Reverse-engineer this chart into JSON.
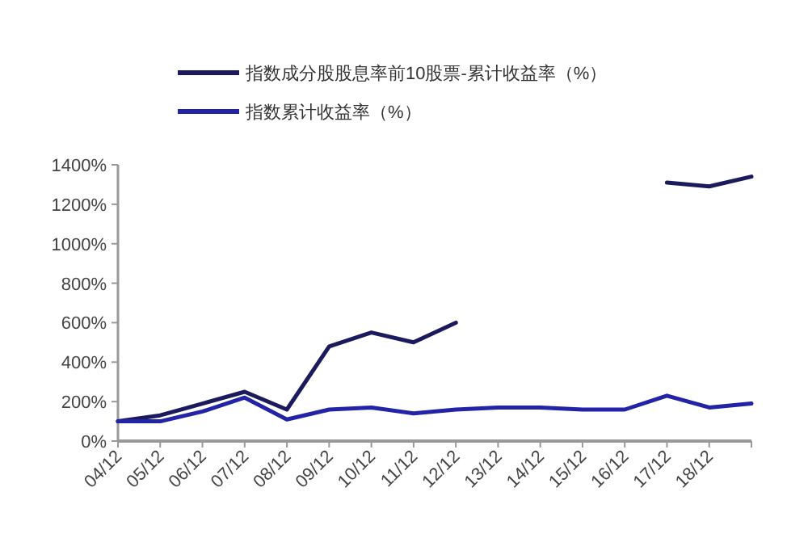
{
  "chart_data": {
    "type": "line",
    "categories": [
      "04/12",
      "05/12",
      "06/12",
      "07/12",
      "08/12",
      "09/12",
      "10/12",
      "11/12",
      "12/12",
      "13/12",
      "14/12",
      "15/12",
      "16/12",
      "17/12",
      "18/12",
      null
    ],
    "ylim": [
      0,
      1400
    ],
    "yticks": [
      {
        "value": 0,
        "label": "0%"
      },
      {
        "value": 200,
        "label": "200%"
      },
      {
        "value": 400,
        "label": "400%"
      },
      {
        "value": 600,
        "label": "600%"
      },
      {
        "value": 800,
        "label": "800%"
      },
      {
        "value": 1000,
        "label": "1000%"
      },
      {
        "value": 1200,
        "label": "1200%"
      },
      {
        "value": 1400,
        "label": "1400%"
      }
    ],
    "legend": "top",
    "series": [
      {
        "name": "指数成分股股息率前10股票-累计收益率（%）",
        "color": "#1a1a5c",
        "values": [
          100,
          130,
          190,
          250,
          160,
          480,
          550,
          500,
          600,
          null,
          null,
          null,
          null,
          1310,
          1290,
          1340
        ]
      },
      {
        "name": "指数累计收益率（%）",
        "color": "#2323a8",
        "values": [
          100,
          100,
          150,
          220,
          110,
          160,
          170,
          140,
          160,
          170,
          170,
          160,
          160,
          230,
          170,
          190
        ]
      }
    ]
  }
}
